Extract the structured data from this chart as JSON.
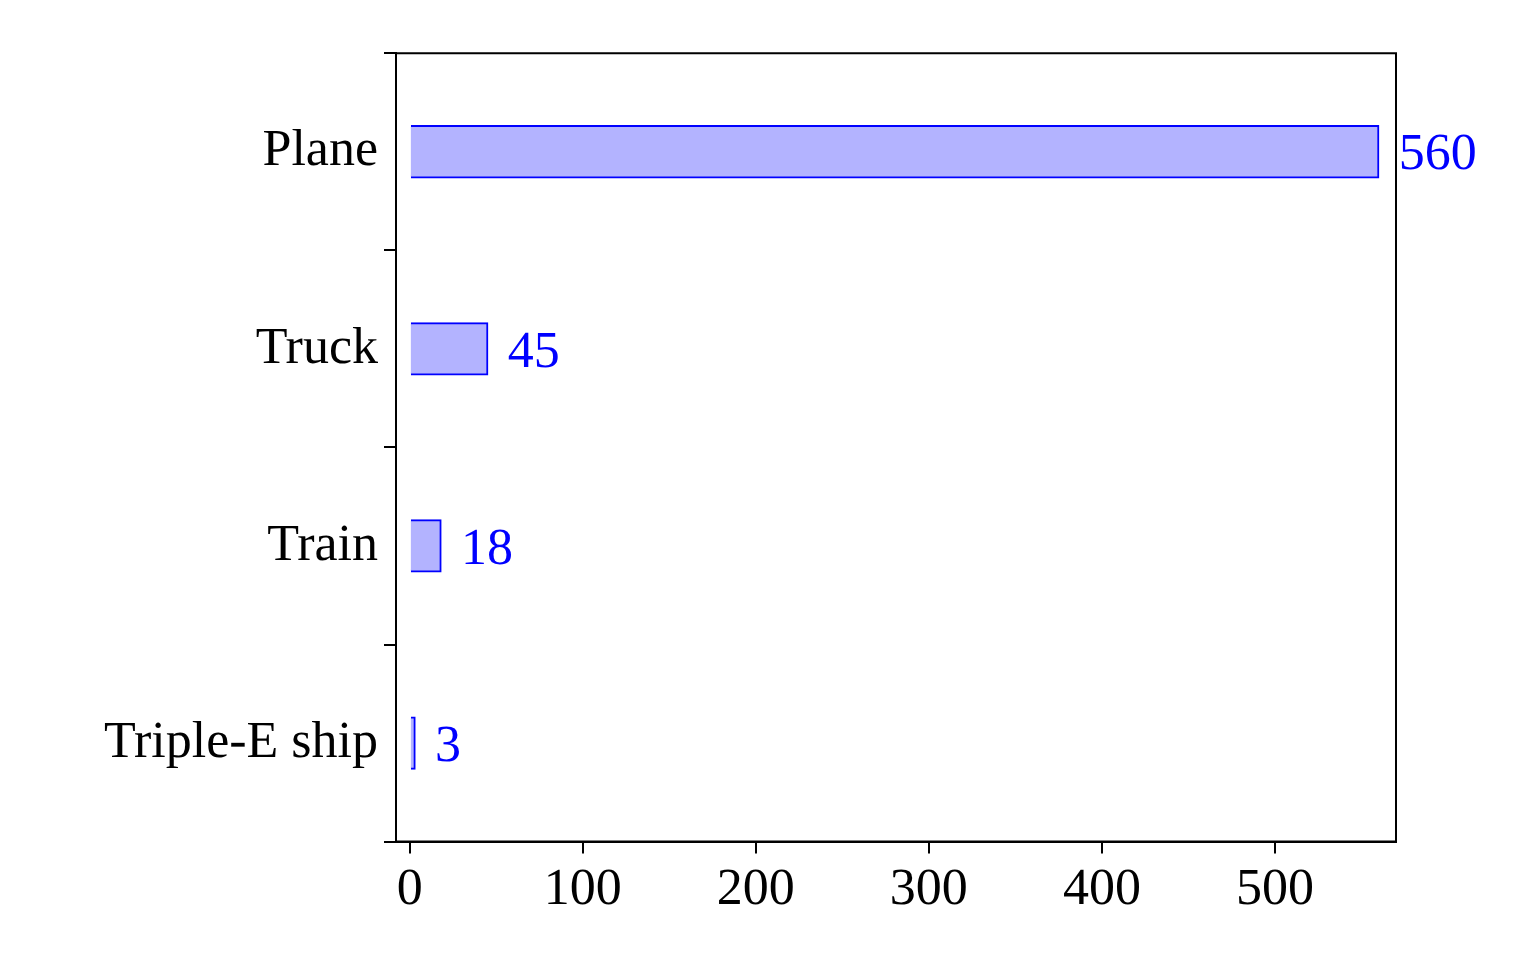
{
  "chart_data": {
    "type": "bar",
    "orientation": "horizontal",
    "categories": [
      "Plane",
      "Truck",
      "Train",
      "Triple-E ship"
    ],
    "values": [
      560,
      45,
      18,
      3
    ],
    "color": "#b3b3ff",
    "data_labels": true,
    "xlim": [
      -8,
      570
    ],
    "xticks": [
      0,
      100,
      200,
      300,
      400,
      500
    ],
    "grid": false,
    "legend": false
  }
}
